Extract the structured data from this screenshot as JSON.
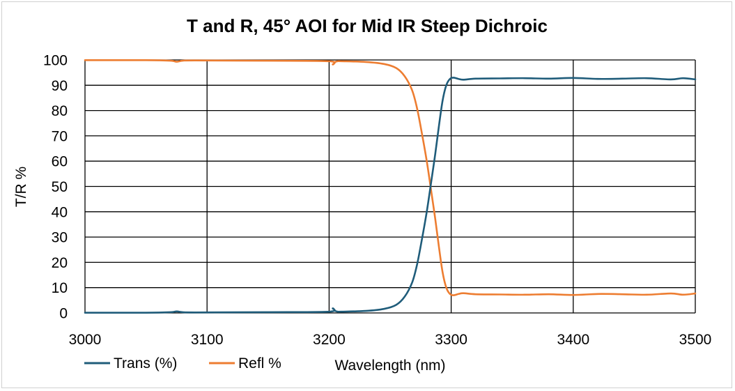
{
  "chart_data": {
    "type": "line",
    "title": "T and R, 45° AOI for Mid IR Steep Dichroic",
    "xlabel": "Wavelength (nm)",
    "ylabel": "T/R %",
    "xlim": [
      3000,
      3500
    ],
    "ylim": [
      0,
      100
    ],
    "xticks": [
      3000,
      3100,
      3200,
      3300,
      3400,
      3500
    ],
    "yticks": [
      0,
      10,
      20,
      30,
      40,
      50,
      60,
      70,
      80,
      90,
      100
    ],
    "grid": true,
    "legend_position": "bottom-left",
    "series": [
      {
        "name": "Trans (%)",
        "color": "#1f5c7a",
        "x": [
          3000,
          3050,
          3070,
          3075,
          3080,
          3090,
          3150,
          3200,
          3203,
          3205,
          3207,
          3210,
          3230,
          3245,
          3255,
          3262,
          3268,
          3272,
          3276,
          3280,
          3284,
          3287,
          3290,
          3293,
          3296,
          3299,
          3302,
          3306,
          3310,
          3320,
          3340,
          3360,
          3380,
          3400,
          3420,
          3440,
          3460,
          3480,
          3490,
          3500
        ],
        "y": [
          0.1,
          0.1,
          0.3,
          0.6,
          0.3,
          0.2,
          0.3,
          0.5,
          1.8,
          0.8,
          0.5,
          0.5,
          0.8,
          1.6,
          3.2,
          6.5,
          12,
          19,
          29,
          40,
          53,
          63,
          74,
          84,
          90,
          92.5,
          93,
          92.5,
          92.2,
          92.6,
          92.7,
          92.8,
          92.6,
          92.9,
          92.5,
          92.6,
          92.8,
          92.3,
          92.8,
          92.3
        ]
      },
      {
        "name": "Refl %",
        "color": "#ed7d31",
        "x": [
          3000,
          3050,
          3070,
          3075,
          3080,
          3090,
          3150,
          3200,
          3203,
          3205,
          3207,
          3210,
          3230,
          3245,
          3255,
          3262,
          3268,
          3272,
          3276,
          3280,
          3284,
          3287,
          3290,
          3293,
          3296,
          3299,
          3302,
          3306,
          3310,
          3320,
          3340,
          3360,
          3380,
          3400,
          3420,
          3440,
          3460,
          3480,
          3490,
          3500
        ],
        "y": [
          99.9,
          99.9,
          99.7,
          99.3,
          99.7,
          99.8,
          99.7,
          99.5,
          98.2,
          99.2,
          99.5,
          99.5,
          99.2,
          98.4,
          96.8,
          93.5,
          88,
          81,
          71,
          60,
          47,
          37,
          26,
          16,
          10,
          7.5,
          7,
          7.5,
          7.8,
          7.4,
          7.3,
          7.2,
          7.4,
          7.1,
          7.5,
          7.4,
          7.2,
          7.7,
          7.2,
          7.7
        ]
      }
    ]
  }
}
